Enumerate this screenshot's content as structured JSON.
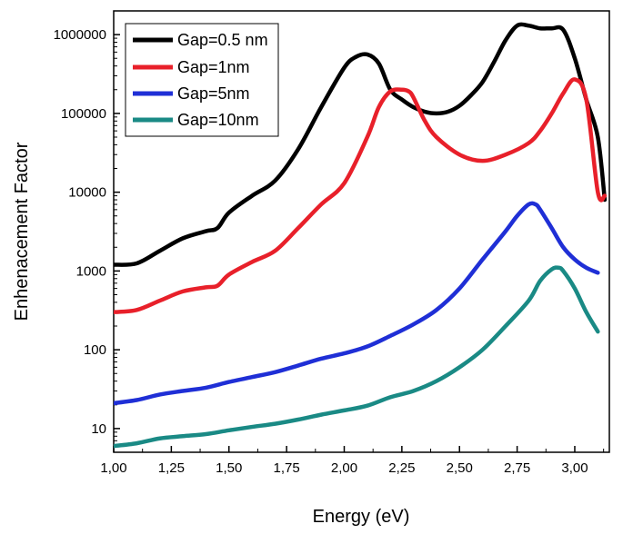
{
  "chart_data": {
    "type": "line",
    "title": "",
    "xlabel": "Energy (eV)",
    "ylabel": "Enhenacement Factor",
    "xlim": [
      1.0,
      3.15
    ],
    "ylim": [
      5,
      2000000
    ],
    "y_scale": "log",
    "x_ticks": [
      1.0,
      1.25,
      1.5,
      1.75,
      2.0,
      2.25,
      2.5,
      2.75,
      3.0
    ],
    "x_tick_labels": [
      "1,00",
      "1,25",
      "1,50",
      "1,75",
      "2,00",
      "2,25",
      "2,50",
      "2,75",
      "3,00"
    ],
    "y_ticks": [
      10,
      100,
      1000,
      10000,
      100000,
      1000000
    ],
    "y_tick_labels": [
      "10",
      "100",
      "1000",
      "10000",
      "100000",
      "1000000"
    ],
    "grid": false,
    "legend_position": "top-left",
    "series": [
      {
        "name": "Gap=0.5 nm",
        "color": "#000000",
        "x": [
          1.0,
          1.1,
          1.2,
          1.3,
          1.4,
          1.45,
          1.5,
          1.6,
          1.7,
          1.8,
          1.9,
          2.0,
          2.05,
          2.1,
          2.15,
          2.2,
          2.25,
          2.3,
          2.35,
          2.4,
          2.45,
          2.5,
          2.55,
          2.6,
          2.65,
          2.7,
          2.75,
          2.8,
          2.85,
          2.9,
          2.95,
          3.0,
          3.05,
          3.1,
          3.13
        ],
        "y": [
          1200,
          1250,
          1800,
          2600,
          3200,
          3500,
          5500,
          9000,
          14000,
          35000,
          120000,
          380000,
          520000,
          560000,
          430000,
          200000,
          150000,
          120000,
          105000,
          100000,
          105000,
          125000,
          170000,
          250000,
          450000,
          850000,
          1300000,
          1300000,
          1200000,
          1200000,
          1150000,
          500000,
          150000,
          50000,
          8000
        ]
      },
      {
        "name": "Gap=1nm",
        "color": "#e8202a",
        "x": [
          1.0,
          1.1,
          1.2,
          1.3,
          1.4,
          1.45,
          1.5,
          1.6,
          1.7,
          1.8,
          1.9,
          2.0,
          2.1,
          2.15,
          2.2,
          2.25,
          2.28,
          2.3,
          2.35,
          2.4,
          2.5,
          2.6,
          2.7,
          2.8,
          2.85,
          2.9,
          2.95,
          3.0,
          3.05,
          3.1,
          3.13
        ],
        "y": [
          300,
          320,
          420,
          550,
          620,
          650,
          900,
          1300,
          1800,
          3500,
          7000,
          13000,
          50000,
          120000,
          190000,
          200000,
          190000,
          160000,
          80000,
          50000,
          30000,
          25000,
          30000,
          42000,
          60000,
          100000,
          180000,
          270000,
          150000,
          10000,
          9000
        ]
      },
      {
        "name": "Gap=5nm",
        "color": "#1f2fd6",
        "x": [
          1.0,
          1.1,
          1.2,
          1.3,
          1.4,
          1.5,
          1.6,
          1.7,
          1.8,
          1.9,
          2.0,
          2.1,
          2.2,
          2.3,
          2.4,
          2.5,
          2.6,
          2.7,
          2.75,
          2.8,
          2.83,
          2.85,
          2.9,
          2.95,
          3.0,
          3.05,
          3.1
        ],
        "y": [
          21,
          23,
          27,
          30,
          33,
          39,
          45,
          52,
          63,
          77,
          90,
          110,
          150,
          210,
          320,
          600,
          1400,
          3200,
          5000,
          7000,
          7000,
          6000,
          3500,
          2000,
          1400,
          1100,
          950
        ]
      },
      {
        "name": "Gap=10nm",
        "color": "#1a8a85",
        "x": [
          1.0,
          1.1,
          1.2,
          1.3,
          1.4,
          1.5,
          1.6,
          1.7,
          1.8,
          1.9,
          2.0,
          2.1,
          2.2,
          2.3,
          2.4,
          2.5,
          2.6,
          2.7,
          2.8,
          2.85,
          2.9,
          2.93,
          2.95,
          3.0,
          3.05,
          3.1
        ],
        "y": [
          6,
          6.5,
          7.5,
          8,
          8.5,
          9.5,
          10.5,
          11.5,
          13,
          15,
          17,
          19.5,
          25,
          30,
          40,
          60,
          100,
          200,
          420,
          750,
          1050,
          1100,
          1000,
          600,
          300,
          170
        ]
      }
    ]
  }
}
